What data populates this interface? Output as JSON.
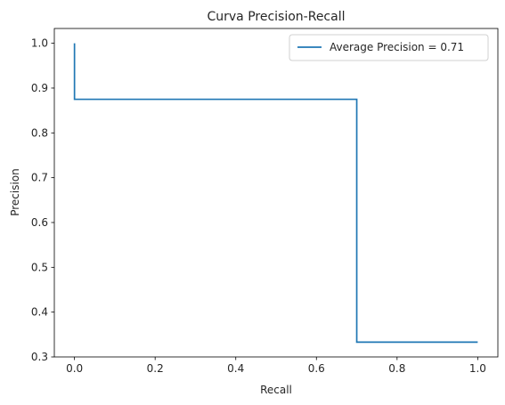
{
  "chart_data": {
    "type": "line",
    "title": "Curva Precision-Recall",
    "xlabel": "Recall",
    "ylabel": "Precision",
    "xlim": [
      -0.05,
      1.05
    ],
    "ylim": [
      0.3,
      1.033
    ],
    "x_ticks": [
      0.0,
      0.2,
      0.4,
      0.6,
      0.8,
      1.0
    ],
    "x_tick_labels": [
      "0.0",
      "0.2",
      "0.4",
      "0.6",
      "0.8",
      "1.0"
    ],
    "y_ticks": [
      0.3,
      0.4,
      0.5,
      0.6,
      0.7,
      0.8,
      0.9,
      1.0
    ],
    "y_tick_labels": [
      "0.3",
      "0.4",
      "0.5",
      "0.6",
      "0.7",
      "0.8",
      "0.9",
      "1.0"
    ],
    "grid": false,
    "legend_position": "top-right",
    "series": [
      {
        "name": "Average Precision = 0.71",
        "color": "#1f77b4",
        "step": "post",
        "x": [
          0.0,
          0.0,
          0.7,
          0.7,
          1.0
        ],
        "y": [
          1.0,
          0.875,
          0.875,
          0.333,
          0.333
        ]
      }
    ]
  }
}
